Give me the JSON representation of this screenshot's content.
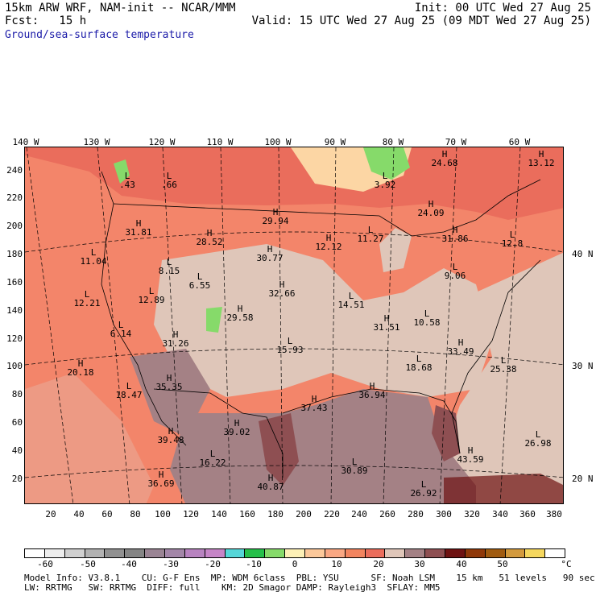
{
  "header": {
    "line1_left": "15km ARW WRF, NAM-init -- NCAR/MMM",
    "line1_right": "Init: 00 UTC Wed 27 Aug 25",
    "line2_left": "Fcst:   15 h",
    "line2_right": "Valid: 15 UTC Wed 27 Aug 25 (09 MDT Wed 27 Aug 25)",
    "field_name": "Ground/sea-surface temperature"
  },
  "axes": {
    "top_longitudes": [
      "140 W",
      "130 W",
      "120 W",
      "110 W",
      "100 W",
      "90 W",
      "80 W",
      "70 W",
      "60 W"
    ],
    "right_latitudes": [
      "40 N",
      "30 N",
      "20 N"
    ],
    "left_ticks": [
      "240",
      "220",
      "200",
      "180",
      "160",
      "140",
      "120",
      "100",
      "80",
      "60",
      "40",
      "20"
    ],
    "bottom_ticks": [
      "20",
      "40",
      "60",
      "80",
      "100",
      "120",
      "140",
      "160",
      "180",
      "200",
      "220",
      "240",
      "260",
      "280",
      "300",
      "320",
      "340",
      "360",
      "380"
    ]
  },
  "colorbar": {
    "colors": [
      "#ffffff",
      "#ededed",
      "#d0d0d0",
      "#b2b2b2",
      "#919191",
      "#858585",
      "#9a8494",
      "#a386a8",
      "#b883c0",
      "#c685c7",
      "#55d6d8",
      "#25c04a",
      "#86da6a",
      "#fdf0b6",
      "#fcc89a",
      "#f9a783",
      "#f2845f",
      "#ea6d5c",
      "#dfc6b9",
      "#a48185",
      "#8e4f52",
      "#6e1212",
      "#8f3809",
      "#a05b10",
      "#d39a3d",
      "#f5d75e",
      "#ffffff"
    ],
    "labels": [
      "-60",
      "-50",
      "-40",
      "-30",
      "-20",
      "-10",
      "0",
      "10",
      "20",
      "30",
      "40",
      "50"
    ],
    "unit": "°C"
  },
  "model_info": {
    "line1": "Model Info: V3.8.1    CU: G-F Ens  MP: WDM 6class  PBL: YSU      SF: Noah LSM    15 km   51 levels   90 sec",
    "line2": "LW: RRTMG   SW: RRTMG  DIFF: full    KM: 2D Smagor DAMP: Rayleigh3  SFLAY: MM5"
  },
  "map_labels": [
    {
      "kind": "H",
      "value": "24.68"
    },
    {
      "kind": "H",
      "value": "13.12"
    },
    {
      "kind": "L",
      "value": "3.92"
    },
    {
      "kind": "L",
      "value": ".66"
    },
    {
      "kind": "L",
      "value": ".43"
    },
    {
      "kind": "H",
      "value": "29.94"
    },
    {
      "kind": "H",
      "value": "24.09"
    },
    {
      "kind": "H",
      "value": "31.81"
    },
    {
      "kind": "H",
      "value": "28.52"
    },
    {
      "kind": "L",
      "value": "11.27"
    },
    {
      "kind": "H",
      "value": "12.12"
    },
    {
      "kind": "H",
      "value": "31.86"
    },
    {
      "kind": "L",
      "value": "12.8"
    },
    {
      "kind": "H",
      "value": "30.77"
    },
    {
      "kind": "L",
      "value": "11.04"
    },
    {
      "kind": "L",
      "value": "8.15"
    },
    {
      "kind": "L",
      "value": "9.06"
    },
    {
      "kind": "L",
      "value": "6.55"
    },
    {
      "kind": "H",
      "value": "32.66"
    },
    {
      "kind": "L",
      "value": "14.51"
    },
    {
      "kind": "L",
      "value": "12.21"
    },
    {
      "kind": "L",
      "value": "12.89"
    },
    {
      "kind": "H",
      "value": "29.58"
    },
    {
      "kind": "H",
      "value": "31.51"
    },
    {
      "kind": "L",
      "value": "10.58"
    },
    {
      "kind": "L",
      "value": "6.14"
    },
    {
      "kind": "H",
      "value": "31.26"
    },
    {
      "kind": "L",
      "value": "15.93"
    },
    {
      "kind": "H",
      "value": "33.49"
    },
    {
      "kind": "H",
      "value": "20.18"
    },
    {
      "kind": "L",
      "value": "18.68"
    },
    {
      "kind": "L",
      "value": "25.38"
    },
    {
      "kind": "H",
      "value": "35.35"
    },
    {
      "kind": "L",
      "value": "18.47"
    },
    {
      "kind": "H",
      "value": "36.94"
    },
    {
      "kind": "H",
      "value": "37.43"
    },
    {
      "kind": "H",
      "value": "39.48"
    },
    {
      "kind": "H",
      "value": "39.02"
    },
    {
      "kind": "L",
      "value": "26.98"
    },
    {
      "kind": "L",
      "value": "16.22"
    },
    {
      "kind": "H",
      "value": "43.59"
    },
    {
      "kind": "L",
      "value": "30.89"
    },
    {
      "kind": "H",
      "value": "36.69"
    },
    {
      "kind": "H",
      "value": "40.87"
    },
    {
      "kind": "L",
      "value": "26.92"
    }
  ]
}
